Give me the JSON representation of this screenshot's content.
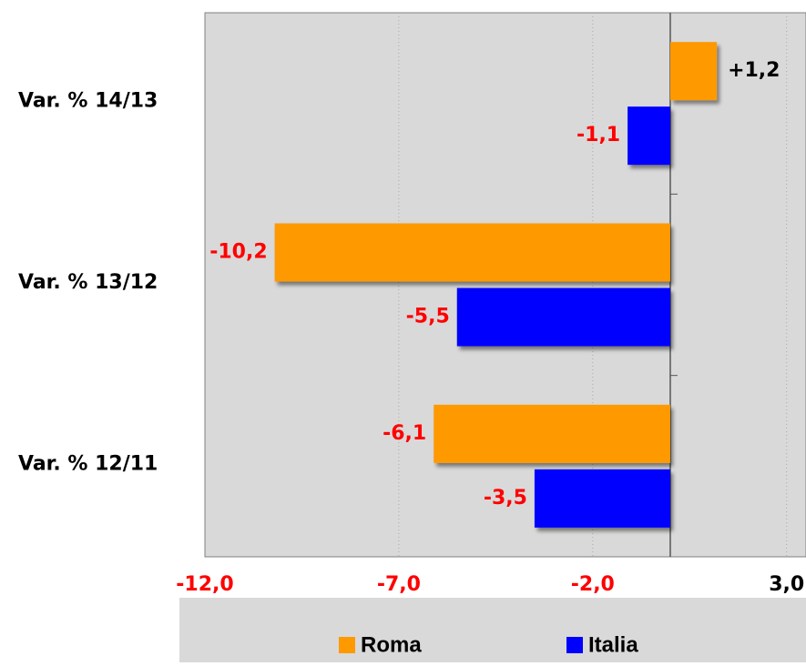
{
  "chart_data": {
    "type": "hbar",
    "categories": [
      "Var. % 14/13",
      "Var. % 13/12",
      "Var. % 12/11"
    ],
    "series": [
      {
        "name": "Roma",
        "color": "#ff9900",
        "values": [
          1.2,
          -10.2,
          -6.1
        ],
        "value_labels": [
          "+1,2",
          "-10,2",
          "-6,1"
        ]
      },
      {
        "name": "Italia",
        "color": "#0000ff",
        "values": [
          -1.1,
          -5.5,
          -3.5
        ],
        "value_labels": [
          "-1,1",
          "-5,5",
          "-3,5"
        ]
      }
    ],
    "xlim": [
      -12,
      3.5
    ],
    "xticks": [
      {
        "value": -12,
        "label": "-12,0"
      },
      {
        "value": -7,
        "label": "-7,0"
      },
      {
        "value": -2,
        "label": "-2,0"
      },
      {
        "value": 3,
        "label": "3,0"
      }
    ],
    "grid": true,
    "legend": "bottom"
  }
}
